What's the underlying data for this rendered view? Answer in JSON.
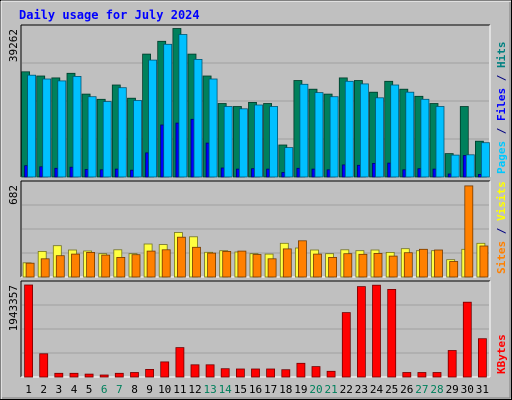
{
  "chart_data": {
    "type": "bar",
    "title": "Daily usage for July 2024",
    "categories": [
      "1",
      "2",
      "3",
      "4",
      "5",
      "6",
      "7",
      "8",
      "9",
      "10",
      "11",
      "12",
      "13",
      "14",
      "15",
      "16",
      "17",
      "18",
      "19",
      "20",
      "21",
      "22",
      "23",
      "24",
      "25",
      "26",
      "27",
      "28",
      "29",
      "30",
      "31"
    ],
    "weekend_days": [
      "6",
      "7",
      "13",
      "14",
      "20",
      "21",
      "27",
      "28"
    ],
    "panels": [
      {
        "id": "hits_files_pages",
        "max_label": "39262",
        "ylim": [
          0,
          39262
        ],
        "legend_position": "right",
        "legend": [
          {
            "text": "Pages",
            "color": "#00c8ff"
          },
          {
            "text": " / ",
            "color": "#000080"
          },
          {
            "text": "Files",
            "color": "#0000ff"
          },
          {
            "text": " / ",
            "color": "#000080"
          },
          {
            "text": "Hits",
            "color": "#008080"
          }
        ],
        "series": [
          {
            "name": "Hits",
            "color": "#00805c",
            "values": [
              27900,
              26800,
              26300,
              27500,
              22000,
              20600,
              24400,
              20900,
              32600,
              36000,
              39400,
              32600,
              26800,
              19500,
              18700,
              19800,
              19500,
              8500,
              25600,
              23300,
              22000,
              26300,
              25600,
              22500,
              25400,
              23300,
              21400,
              19500,
              6200,
              18700,
              9500
            ]
          },
          {
            "name": "Files",
            "color": "#0000ff",
            "values": [
              3000,
              2700,
              2300,
              2600,
              2000,
              1900,
              2100,
              1800,
              6400,
              13800,
              14300,
              15300,
              9000,
              2400,
              2100,
              2200,
              2100,
              1200,
              2300,
              2100,
              1900,
              3200,
              3100,
              3600,
              3700,
              1900,
              2200,
              2100,
              800,
              5700,
              700
            ]
          },
          {
            "name": "Pages",
            "color": "#00c0ff",
            "values": [
              27000,
              26000,
              25500,
              26700,
              21300,
              20000,
              23700,
              20300,
              31000,
              35200,
              37800,
              31200,
              26000,
              18700,
              18100,
              19100,
              18700,
              7800,
              24600,
              22400,
              21300,
              25400,
              24700,
              21000,
              24400,
              22500,
              20600,
              18700,
              5800,
              5900,
              9100
            ]
          }
        ]
      },
      {
        "id": "visits_sites",
        "max_label": "682",
        "ylim": [
          0,
          682
        ],
        "legend_position": "right",
        "legend": [
          {
            "text": "Sites",
            "color": "#ff8000"
          },
          {
            "text": " / ",
            "color": "#000080"
          },
          {
            "text": "Visits",
            "color": "#ffff00"
          }
        ],
        "series": [
          {
            "name": "Visits",
            "color": "#ffff40",
            "values": [
              105,
              190,
              232,
              200,
              193,
              173,
              202,
              173,
              245,
              240,
              330,
              298,
              183,
              195,
              185,
              173,
              170,
              250,
              215,
              200,
              173,
              202,
              195,
              200,
              182,
              210,
              195,
              195,
              128,
              205,
              250
            ]
          },
          {
            "name": "Sites",
            "color": "#ff8000",
            "values": [
              102,
              135,
              158,
              170,
              182,
              162,
              145,
              165,
              192,
              202,
              295,
              220,
              177,
              190,
              192,
              167,
              135,
              208,
              268,
              170,
              145,
              173,
              168,
              175,
              155,
              180,
              205,
              200,
              115,
              675,
              230
            ]
          }
        ]
      },
      {
        "id": "kbytes",
        "max_label": "1943357",
        "ylim": [
          0,
          1943357
        ],
        "legend_position": "right",
        "legend": [
          {
            "text": "KBytes",
            "color": "#ff0000"
          }
        ],
        "series": [
          {
            "name": "KBytes",
            "color": "#ff0000",
            "values": [
              1943357,
              490000,
              78000,
              78000,
              62000,
              43000,
              78000,
              94000,
              160000,
              320000,
              620000,
              258000,
              258000,
              175000,
              170000,
              170000,
              170000,
              155000,
              290000,
              220000,
              120000,
              1360000,
              1910000,
              1940000,
              1850000,
              94000,
              94000,
              94000,
              560000,
              1580000,
              810000
            ]
          }
        ]
      }
    ]
  }
}
